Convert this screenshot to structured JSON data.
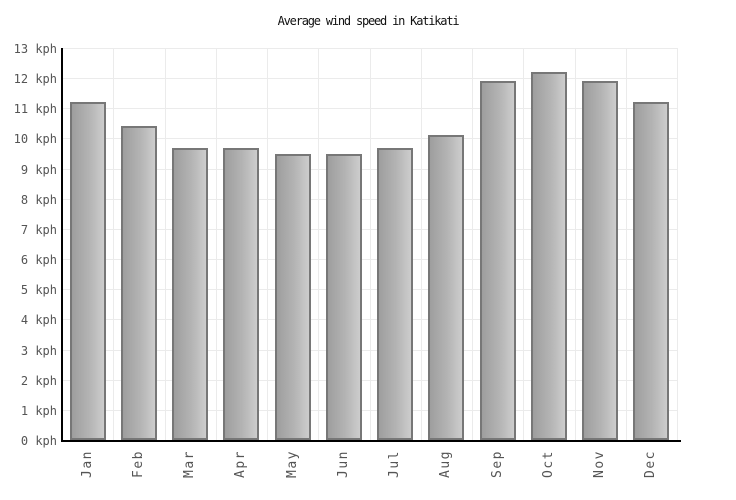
{
  "chart_data": {
    "type": "bar",
    "title": "Average wind speed in Katikati",
    "categories": [
      "Jan",
      "Feb",
      "Mar",
      "Apr",
      "May",
      "Jun",
      "Jul",
      "Aug",
      "Sep",
      "Oct",
      "Nov",
      "Dec"
    ],
    "values": [
      11.2,
      10.4,
      9.7,
      9.7,
      9.5,
      9.5,
      9.7,
      10.1,
      11.9,
      12.2,
      11.9,
      11.2
    ],
    "xlabel": "",
    "ylabel": "kph",
    "ylim": [
      0,
      13
    ],
    "ytick_step": 1,
    "ytick_suffix": " kph",
    "grid": true,
    "legend_position": "none",
    "colors": {
      "bar_fill_light": "#cdcdcd",
      "bar_fill_dark": "#9e9e9e",
      "bar_border": "#777777",
      "grid": "#ebebeb",
      "axis": "#000000",
      "tick_label": "#555555",
      "title": "#111111",
      "background": "#ffffff"
    }
  }
}
